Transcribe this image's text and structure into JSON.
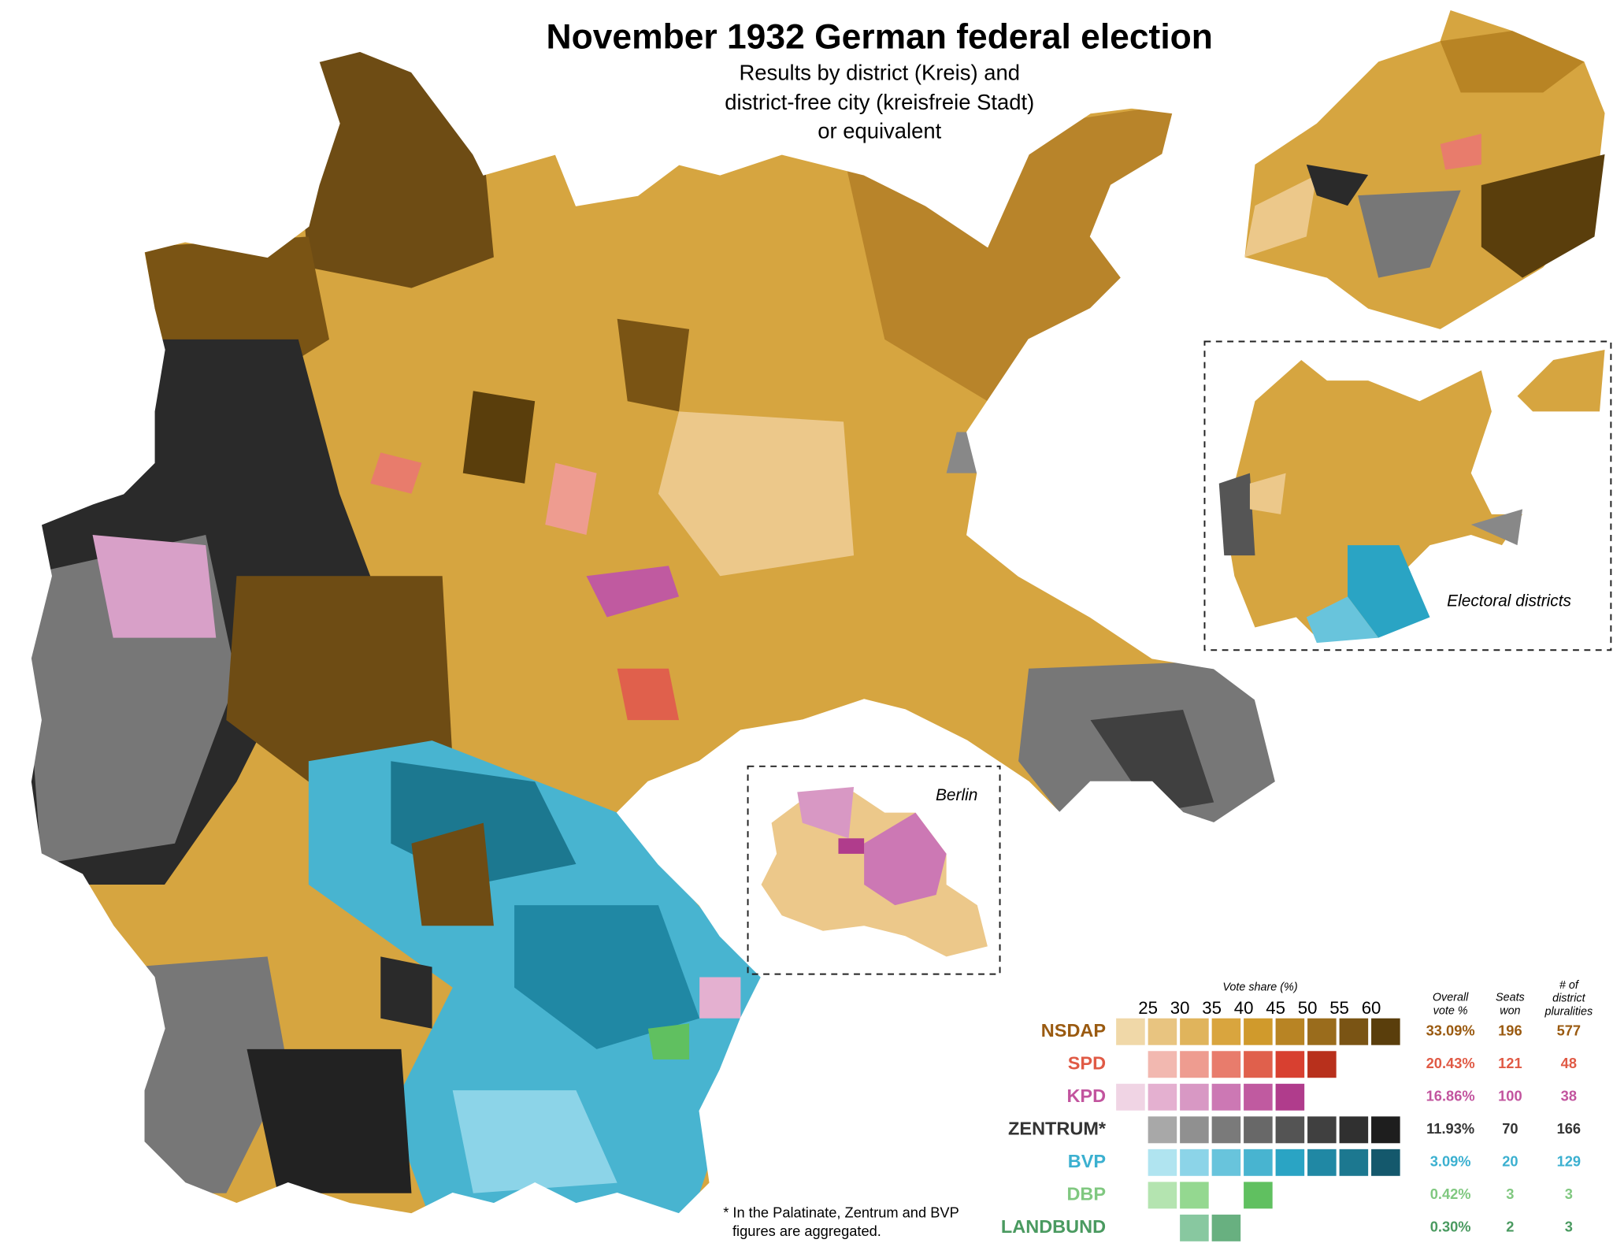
{
  "header": {
    "title": "November 1932 German federal election",
    "subtitle": [
      "Results by district (Kreis) and",
      "district-free city (kreisfreie Stadt)",
      "or equivalent"
    ]
  },
  "insets": {
    "berlin": "Berlin",
    "electoral": "Electoral districts"
  },
  "legend": {
    "title": "Vote share (%)",
    "ticks": [
      25,
      30,
      35,
      40,
      45,
      50,
      55,
      60
    ],
    "vote_header": [
      "Overall",
      "vote %"
    ],
    "seats_header": [
      "Seats",
      "won"
    ],
    "plurality_header": [
      "# of",
      "district",
      "pluralities"
    ],
    "rows": [
      {
        "party": "NSDAP",
        "color": "#9a5a10",
        "swatches": [
          "#f0d8a8",
          "#e8c480",
          "#e0b45c",
          "#d9a53e",
          "#d09a2c",
          "#b88424",
          "#9a6c1c",
          "#7a5414",
          "#5a3e0c"
        ],
        "vote": "33.09%",
        "seats": 196,
        "pluralities": 577
      },
      {
        "party": "SPD",
        "color": "#e05a45",
        "swatches": [
          null,
          "#f2b8b0",
          "#ee9c90",
          "#e87c6c",
          "#e0604c",
          "#d84030",
          "#b8301c",
          null,
          null
        ],
        "vote": "20.43%",
        "seats": 121,
        "pluralities": 48
      },
      {
        "party": "KPD",
        "color": "#c2549e",
        "swatches": [
          "#f0d4e4",
          "#e4b0d0",
          "#d898c4",
          "#cc78b4",
          "#c05aa0",
          "#b03c8c",
          null,
          null,
          null
        ],
        "vote": "16.86%",
        "seats": 100,
        "pluralities": 38
      },
      {
        "party": "ZENTRUM*",
        "color": "#333333",
        "swatches": [
          null,
          "#a8a8a8",
          "#909090",
          "#7a7a7a",
          "#686868",
          "#545454",
          "#404040",
          "#303030",
          "#1e1e1e"
        ],
        "vote": "11.93%",
        "seats": 70,
        "pluralities": 166
      },
      {
        "party": "BVP",
        "color": "#3bb0d0",
        "swatches": [
          null,
          "#b0e4f0",
          "#8cd4e8",
          "#68c4dc",
          "#48b4d0",
          "#2aa4c4",
          "#2088a4",
          "#1c7890",
          "#14586c"
        ],
        "vote": "3.09%",
        "seats": 20,
        "pluralities": 129
      },
      {
        "party": "DBP",
        "color": "#80c880",
        "swatches": [
          null,
          "#b4e4b0",
          "#94d890",
          null,
          "#60c060",
          null,
          null,
          null,
          null
        ],
        "vote": "0.42%",
        "seats": 3,
        "pluralities": 3
      },
      {
        "party": "LANDBUND",
        "color": "#4a9a60",
        "swatches": [
          null,
          null,
          "#88c8a0",
          "#68b080",
          null,
          null,
          null,
          null,
          null
        ],
        "vote": "0.30%",
        "seats": 2,
        "pluralities": 3
      }
    ]
  },
  "footnote": [
    "* In the Palatinate, Zentrum and BVP",
    "figures are aggregated."
  ]
}
